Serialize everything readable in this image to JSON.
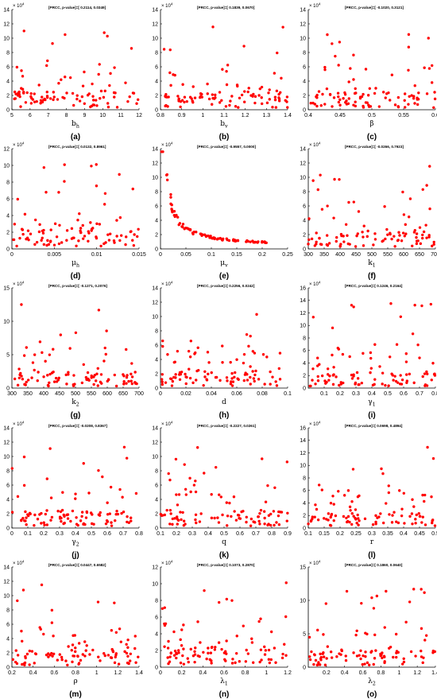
{
  "figure": {
    "dot_color": "#ff0000",
    "y_exponent": "× 10^4"
  },
  "chart_data": [
    {
      "type": "scatter",
      "sub": "(a)",
      "xlabel": "b_h",
      "title": "[PRCC, p-value]=[ 0.2114, 0.0349]",
      "xlim": [
        5,
        12
      ],
      "ylim": [
        0,
        14
      ],
      "xticks": [
        5,
        6,
        7,
        8,
        9,
        10,
        11,
        12
      ],
      "yticks": [
        0,
        2,
        4,
        6,
        8,
        10,
        12,
        14
      ],
      "seed": 11,
      "pattern": "flat"
    },
    {
      "type": "scatter",
      "sub": "(b)",
      "xlabel": "b_v",
      "title": "[PRCC, p-value]=[ 0.1839, 0.0670]",
      "xlim": [
        0.8,
        1.4
      ],
      "ylim": [
        0,
        14
      ],
      "xticks": [
        0.8,
        0.9,
        1,
        1.1,
        1.2,
        1.3,
        1.4
      ],
      "yticks": [
        0,
        2,
        4,
        6,
        8,
        10,
        12,
        14
      ],
      "seed": 23,
      "pattern": "flat"
    },
    {
      "type": "scatter",
      "sub": "(c)",
      "xlabel": "β",
      "title": "[PRCC, p-value]=[ -0.1020, 0.3121]",
      "xlim": [
        0.4,
        0.6
      ],
      "ylim": [
        0,
        14
      ],
      "xticks": [
        0.4,
        0.45,
        0.5,
        0.55,
        0.6
      ],
      "yticks": [
        0,
        2,
        4,
        6,
        8,
        10,
        12,
        14
      ],
      "seed": 37,
      "pattern": "flat"
    },
    {
      "type": "scatter",
      "sub": "(d)",
      "xlabel": "μ_h",
      "title": "[PRCC, p-value]=[ 0.0132, 0.8961]",
      "xlim": [
        0,
        0.015
      ],
      "ylim": [
        0,
        12
      ],
      "xticks": [
        0,
        0.005,
        0.01,
        0.015
      ],
      "yticks": [
        0,
        2,
        4,
        6,
        8,
        10,
        12
      ],
      "seed": 41,
      "pattern": "flat"
    },
    {
      "type": "scatter",
      "sub": "(e)",
      "xlabel": "μ_v",
      "title": "[PRCC, p-value]=[ -0.9557, 0.0000]",
      "xlim": [
        0,
        0.25
      ],
      "ylim": [
        0,
        14
      ],
      "xticks": [
        0,
        0.05,
        0.1,
        0.15,
        0.2,
        0.25
      ],
      "yticks": [
        0,
        2,
        4,
        6,
        8,
        10,
        12,
        14
      ],
      "seed": 53,
      "pattern": "decay"
    },
    {
      "type": "scatter",
      "sub": "(f)",
      "xlabel": "k_1",
      "title": "[PRCC, p-value]=[ -0.0266, 0.7923]",
      "xlim": [
        300,
        700
      ],
      "ylim": [
        0,
        14
      ],
      "xticks": [
        300,
        350,
        400,
        450,
        500,
        550,
        600,
        650,
        700
      ],
      "yticks": [
        0,
        2,
        4,
        6,
        8,
        10,
        12,
        14
      ],
      "seed": 67,
      "pattern": "flat"
    },
    {
      "type": "scatter",
      "sub": "(g)",
      "xlabel": "k_2",
      "title": "[PRCC, p-value]=[ -0.1271, 0.2076]",
      "xlim": [
        300,
        700
      ],
      "ylim": [
        0,
        15
      ],
      "xticks": [
        300,
        350,
        400,
        450,
        500,
        550,
        600,
        650,
        700
      ],
      "yticks": [
        0,
        5,
        10,
        15
      ],
      "seed": 71,
      "pattern": "flat"
    },
    {
      "type": "scatter",
      "sub": "(h)",
      "xlabel": "d",
      "title": "[PRCC, p-value]=[ 0.2256, 0.0242]",
      "xlim": [
        0,
        0.1
      ],
      "ylim": [
        0,
        14
      ],
      "xticks": [
        0,
        0.02,
        0.04,
        0.06,
        0.08,
        0.1
      ],
      "yticks": [
        0,
        2,
        4,
        6,
        8,
        10,
        12,
        14
      ],
      "seed": 83,
      "pattern": "flat"
    },
    {
      "type": "scatter",
      "sub": "(i)",
      "xlabel": "γ_1",
      "title": "[PRCC, p-value]=[ 0.1246, 0.2164]",
      "xlim": [
        0,
        0.8
      ],
      "ylim": [
        0,
        16
      ],
      "xticks": [
        0.1,
        0.2,
        0.3,
        0.4,
        0.5,
        0.6,
        0.7,
        0.8
      ],
      "yticks": [
        0,
        2,
        4,
        6,
        8,
        10,
        12,
        14,
        16
      ],
      "seed": 97,
      "pattern": "flat"
    },
    {
      "type": "scatter",
      "sub": "(j)",
      "xlabel": "γ_2",
      "title": "[PRCC, p-value]=[ -0.0208, 0.8367]",
      "xlim": [
        0,
        0.8
      ],
      "ylim": [
        0,
        14
      ],
      "xticks": [
        0,
        0.1,
        0.2,
        0.3,
        0.4,
        0.5,
        0.6,
        0.7,
        0.8
      ],
      "yticks": [
        0,
        2,
        4,
        6,
        8,
        10,
        12,
        14
      ],
      "seed": 101,
      "pattern": "flat"
    },
    {
      "type": "scatter",
      "sub": "(k)",
      "xlabel": "q",
      "title": "[PRCC, p-value]=[ -0.2227, 0.0261]",
      "xlim": [
        0.1,
        0.9
      ],
      "ylim": [
        0,
        14
      ],
      "xticks": [
        0.1,
        0.2,
        0.3,
        0.4,
        0.5,
        0.6,
        0.7,
        0.8,
        0.9
      ],
      "yticks": [
        0,
        2,
        4,
        6,
        8,
        10,
        12,
        14
      ],
      "seed": 113,
      "pattern": "flat"
    },
    {
      "type": "scatter",
      "sub": "(l)",
      "xlabel": "r",
      "title": "[PRCC, p-value]=[ 0.0698, 0.4894]",
      "xlim": [
        0.1,
        0.5
      ],
      "ylim": [
        0,
        16
      ],
      "xticks": [
        0.1,
        0.15,
        0.2,
        0.25,
        0.3,
        0.35,
        0.4,
        0.45,
        0.5
      ],
      "yticks": [
        0,
        2,
        4,
        6,
        8,
        10,
        12,
        14,
        16
      ],
      "seed": 127,
      "pattern": "flat"
    },
    {
      "type": "scatter",
      "sub": "(m)",
      "xlabel": "ρ",
      "title": "[PRCC, p-value]=[ 0.0447, 0.6582]",
      "xlim": [
        0.2,
        1.4
      ],
      "ylim": [
        0,
        14
      ],
      "xticks": [
        0.2,
        0.4,
        0.6,
        0.8,
        1,
        1.2,
        1.4
      ],
      "yticks": [
        0,
        2,
        4,
        6,
        8,
        10,
        12,
        14
      ],
      "seed": 131,
      "pattern": "flat"
    },
    {
      "type": "scatter",
      "sub": "(n)",
      "xlabel": "λ_1",
      "title": "[PRCC, p-value]=[ 0.1073, 0.2870]",
      "xlim": [
        0,
        1.2
      ],
      "ylim": [
        0,
        12
      ],
      "xticks": [
        0,
        0.2,
        0.4,
        0.6,
        0.8,
        1,
        1.2
      ],
      "yticks": [
        0,
        2,
        4,
        6,
        8,
        10,
        12
      ],
      "seed": 149,
      "pattern": "flat"
    },
    {
      "type": "scatter",
      "sub": "(o)",
      "xlabel": "λ_2",
      "title": "[PRCC, p-value]=[ 0.1860, 0.0640]",
      "xlim": [
        0,
        1.4
      ],
      "ylim": [
        0,
        15
      ],
      "xticks": [
        0.2,
        0.4,
        0.6,
        0.8,
        1,
        1.2,
        1.4
      ],
      "yticks": [
        0,
        5,
        10,
        15
      ],
      "seed": 157,
      "pattern": "flat"
    }
  ]
}
